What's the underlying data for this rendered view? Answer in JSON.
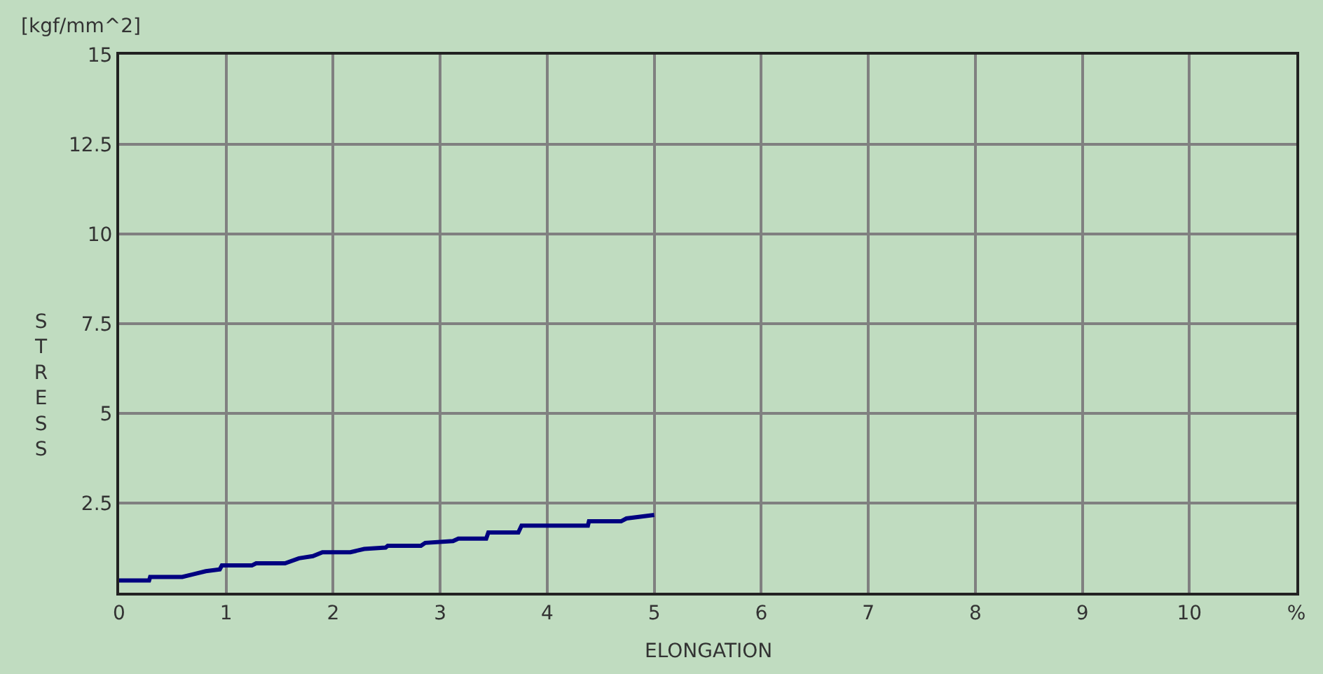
{
  "chart_data": {
    "type": "line",
    "xlabel": "ELONGATION",
    "ylabel": "STRESS",
    "annotations": [
      "[kgf/mm^2]"
    ],
    "x": [
      0,
      0.28,
      0.29,
      0.59,
      0.7,
      0.81,
      0.94,
      0.96,
      1.24,
      1.28,
      1.55,
      1.68,
      1.81,
      1.9,
      2.16,
      2.29,
      2.49,
      2.51,
      2.82,
      2.86,
      3.12,
      3.17,
      3.43,
      3.45,
      3.73,
      3.76,
      4.38,
      4.39,
      4.69,
      4.74,
      5.0
    ],
    "series": [
      {
        "color": "#000080",
        "values": [
          0.34,
          0.34,
          0.44,
          0.44,
          0.52,
          0.6,
          0.65,
          0.76,
          0.76,
          0.82,
          0.82,
          0.96,
          1.02,
          1.13,
          1.13,
          1.22,
          1.26,
          1.31,
          1.31,
          1.39,
          1.44,
          1.51,
          1.51,
          1.68,
          1.68,
          1.87,
          1.87,
          1.99,
          1.99,
          2.07,
          2.17
        ]
      }
    ],
    "xlim": [
      0,
      11
    ],
    "xticks": [
      0,
      1,
      2,
      3,
      4,
      5,
      6,
      7,
      8,
      9,
      10,
      {
        "value": 11,
        "label": "%"
      }
    ],
    "ylim": [
      0,
      15
    ],
    "yticks": [
      {
        "value": 0,
        "label": null
      },
      2.5,
      5,
      7.5,
      10,
      12.5,
      15
    ],
    "grid": true,
    "marker": "none",
    "line_style": "solid"
  }
}
